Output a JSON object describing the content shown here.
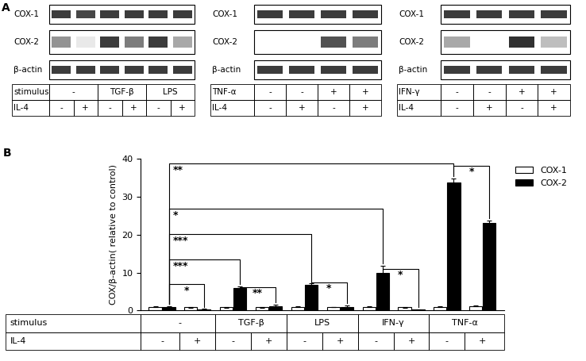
{
  "panel_a": {
    "label": "A",
    "blots": [
      {
        "rows": [
          {
            "name": "COX-1",
            "bands": [
              0.9,
              0.85,
              0.9,
              0.9,
              0.9,
              0.9
            ]
          },
          {
            "name": "COX-2",
            "bands": [
              0.5,
              0.1,
              0.9,
              0.6,
              0.9,
              0.4
            ]
          },
          {
            "name": "β-actin",
            "bands": [
              0.9,
              0.9,
              0.9,
              0.9,
              0.9,
              0.9
            ]
          }
        ],
        "table": [
          {
            "label": "stimulus",
            "cells": [
              {
                "text": "-",
                "span": 2
              },
              {
                "text": "TGF-β",
                "span": 2
              },
              {
                "text": "LPS",
                "span": 2
              }
            ]
          },
          {
            "label": "IL-4",
            "cells": [
              {
                "text": "-",
                "span": 1
              },
              {
                "text": "+",
                "span": 1
              },
              {
                "text": "-",
                "span": 1
              },
              {
                "text": "+",
                "span": 1
              },
              {
                "text": "-",
                "span": 1
              },
              {
                "text": "+",
                "span": 1
              }
            ]
          }
        ]
      },
      {
        "rows": [
          {
            "name": "COX-1",
            "bands": [
              0.9,
              0.9,
              0.9,
              0.9
            ]
          },
          {
            "name": "COX-2",
            "bands": [
              0,
              0,
              0.8,
              0.6
            ]
          },
          {
            "name": "β-actin",
            "bands": [
              0.9,
              0.9,
              0.9,
              0.9
            ]
          }
        ],
        "table": [
          {
            "label": "TNF-α",
            "cells": [
              {
                "text": "-",
                "span": 1
              },
              {
                "text": "-",
                "span": 1
              },
              {
                "text": "+",
                "span": 1
              },
              {
                "text": "+",
                "span": 1
              }
            ]
          },
          {
            "label": "IL-4",
            "cells": [
              {
                "text": "-",
                "span": 1
              },
              {
                "text": "+",
                "span": 1
              },
              {
                "text": "-",
                "span": 1
              },
              {
                "text": "+",
                "span": 1
              }
            ]
          }
        ]
      },
      {
        "rows": [
          {
            "name": "COX-1",
            "bands": [
              0.9,
              0.9,
              0.9,
              0.9
            ]
          },
          {
            "name": "COX-2",
            "bands": [
              0.4,
              0,
              0.95,
              0.3
            ]
          },
          {
            "name": "β-actin",
            "bands": [
              0.9,
              0.9,
              0.9,
              0.9
            ]
          }
        ],
        "table": [
          {
            "label": "IFN-γ",
            "cells": [
              {
                "text": "-",
                "span": 1
              },
              {
                "text": "-",
                "span": 1
              },
              {
                "text": "+",
                "span": 1
              },
              {
                "text": "+",
                "span": 1
              }
            ]
          },
          {
            "label": "IL-4",
            "cells": [
              {
                "text": "-",
                "span": 1
              },
              {
                "text": "+",
                "span": 1
              },
              {
                "text": "-",
                "span": 1
              },
              {
                "text": "+",
                "span": 1
              }
            ]
          }
        ]
      }
    ]
  },
  "chart_data": {
    "type": "bar",
    "panel_label": "B",
    "y_label": "COX/β-actin( relative to control)",
    "categories": [
      null,
      null,
      null,
      null,
      null,
      null,
      null,
      null,
      null,
      null
    ],
    "tick_labels": "y",
    "ylim": [
      0,
      40
    ],
    "yticks": [
      0,
      10,
      20,
      30,
      40
    ],
    "legend": "right",
    "series": [
      {
        "name": "COX-1",
        "color": "#ffffff",
        "values": [
          1.0,
          0.8,
          0.8,
          0.8,
          1.0,
          0.9,
          1.0,
          0.8,
          1.0,
          1.2
        ],
        "errors": [
          0.1,
          0.1,
          0.1,
          0.1,
          0.1,
          0.1,
          0.1,
          0.1,
          0.1,
          0.1
        ]
      },
      {
        "name": "COX-2",
        "color": "#000000",
        "values": [
          1.0,
          0.3,
          6.0,
          1.2,
          6.8,
          0.8,
          10.0,
          0.2,
          33.8,
          23.0
        ],
        "errors": [
          0.1,
          0.1,
          0.3,
          0.3,
          0.3,
          0.5,
          1.8,
          0.1,
          1.0,
          0.8
        ]
      }
    ],
    "significance": [
      {
        "from": 0,
        "to": 1,
        "height": 6.9,
        "label": "*"
      },
      {
        "from": 0,
        "to": 2,
        "height": 13.4,
        "label": "***"
      },
      {
        "from": 0,
        "to": 4,
        "height": 20.1,
        "label": "***"
      },
      {
        "from": 0,
        "to": 6,
        "height": 26.8,
        "label": "*"
      },
      {
        "from": 0,
        "to": 8,
        "height": 38.7,
        "label": "**"
      },
      {
        "from": 2,
        "to": 3,
        "height": 6.2,
        "label": "**"
      },
      {
        "from": 4,
        "to": 5,
        "height": 7.4,
        "label": "*"
      },
      {
        "from": 6,
        "to": 7,
        "height": 11.0,
        "label": "*"
      },
      {
        "from": 8,
        "to": 9,
        "height": 38.2,
        "label": "*"
      }
    ],
    "table": {
      "rows": [
        {
          "label": "stimulus",
          "cells": [
            {
              "text": "-",
              "span": 2
            },
            {
              "text": "TGF-β",
              "span": 2
            },
            {
              "text": "LPS",
              "span": 2
            },
            {
              "text": "IFN-γ",
              "span": 2
            },
            {
              "text": "TNF-α",
              "span": 2
            }
          ]
        },
        {
          "label": "IL-4",
          "cells": [
            {
              "text": "-",
              "span": 1
            },
            {
              "text": "+",
              "span": 1
            },
            {
              "text": "-",
              "span": 1
            },
            {
              "text": "+",
              "span": 1
            },
            {
              "text": "-",
              "span": 1
            },
            {
              "text": "+",
              "span": 1
            },
            {
              "text": "-",
              "span": 1
            },
            {
              "text": "+",
              "span": 1
            },
            {
              "text": "-",
              "span": 1
            },
            {
              "text": "+",
              "span": 1
            }
          ]
        }
      ]
    }
  }
}
